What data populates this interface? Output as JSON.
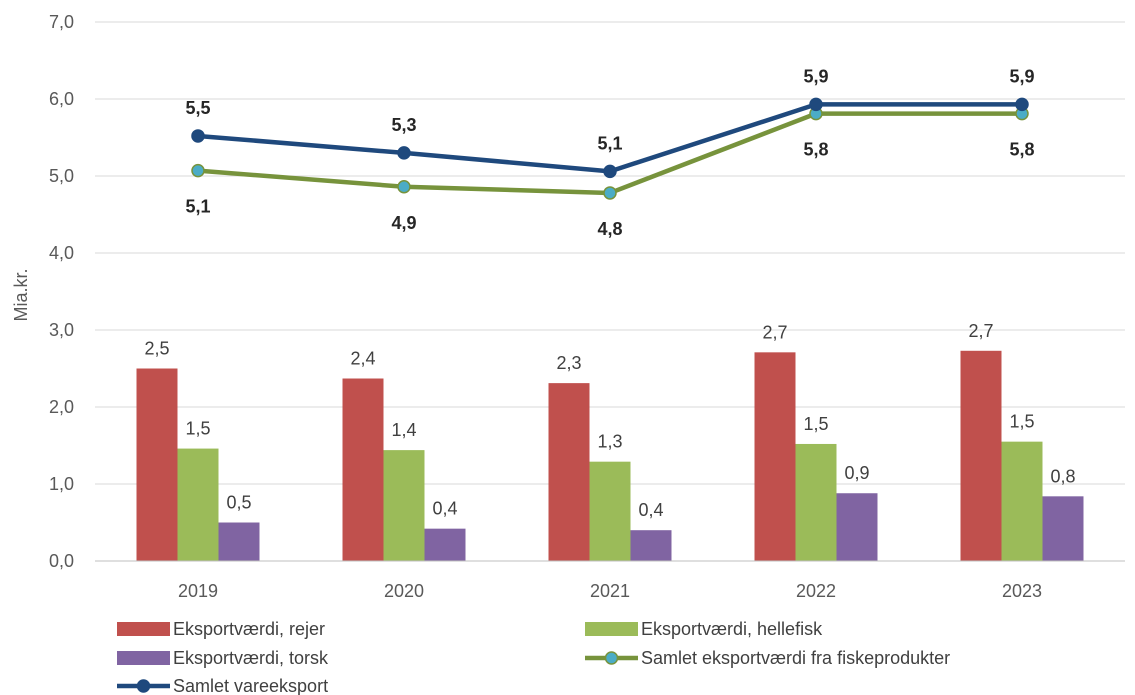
{
  "chart_data": {
    "type": "bar",
    "categories": [
      "2019",
      "2020",
      "2021",
      "2022",
      "2023"
    ],
    "ylabel": "Mia.kr.",
    "ylim": [
      0,
      7
    ],
    "yticks": [
      "0,0",
      "1,0",
      "2,0",
      "3,0",
      "4,0",
      "5,0",
      "6,0",
      "7,0"
    ],
    "grid": true,
    "legend_position": "bottom",
    "bar_series": [
      {
        "name": "Eksportværdi, rejer",
        "color": "#C0504D",
        "values": [
          2.5,
          2.37,
          2.31,
          2.71,
          2.73
        ],
        "labels": [
          "2,5",
          "2,4",
          "2,3",
          "2,7",
          "2,7"
        ]
      },
      {
        "name": "Eksportværdi, hellefisk",
        "color": "#9BBB59",
        "values": [
          1.46,
          1.44,
          1.29,
          1.52,
          1.55
        ],
        "labels": [
          "1,5",
          "1,4",
          "1,3",
          "1,5",
          "1,5"
        ]
      },
      {
        "name": "Eksportværdi, torsk",
        "color": "#8064A2",
        "values": [
          0.5,
          0.42,
          0.4,
          0.88,
          0.84
        ],
        "labels": [
          "0,5",
          "0,4",
          "0,4",
          "0,9",
          "0,8"
        ]
      }
    ],
    "line_series": [
      {
        "name": "Samlet eksportværdi fra fiskeprodukter",
        "color": "#77933C",
        "marker_color": "#4BACC6",
        "values": [
          5.07,
          4.86,
          4.78,
          5.81,
          5.81
        ],
        "labels": [
          "5,1",
          "4,9",
          "4,8",
          "5,8",
          "5,8"
        ]
      },
      {
        "name": "Samlet vareeksport",
        "color": "#1F497D",
        "marker_color": "#1F497D",
        "values": [
          5.52,
          5.3,
          5.06,
          5.93,
          5.93
        ],
        "labels": [
          "5,5",
          "5,3",
          "5,1",
          "5,9",
          "5,9"
        ]
      }
    ]
  }
}
